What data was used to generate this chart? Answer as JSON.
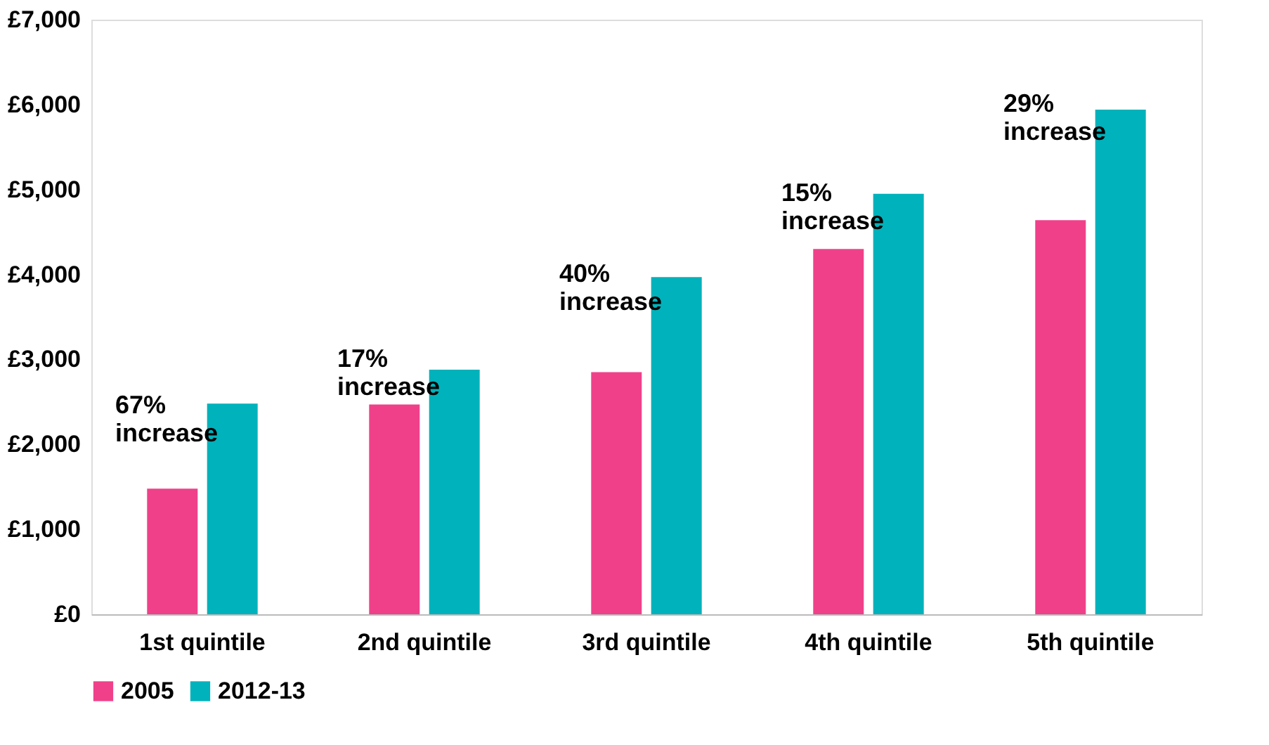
{
  "chart_data": {
    "type": "bar",
    "categories": [
      "1st quintile",
      "2nd quintile",
      "3rd quintile",
      "4th quintile",
      "5th quintile"
    ],
    "series": [
      {
        "name": "2005",
        "color": "#f0408a",
        "values": [
          1480,
          2470,
          2850,
          4300,
          4640
        ]
      },
      {
        "name": "2012-13",
        "color": "#00b2bb",
        "values": [
          2480,
          2880,
          3970,
          4950,
          5940
        ]
      }
    ],
    "ylim": [
      0,
      7000
    ],
    "yticks": [
      {
        "value": 0,
        "label": "£0"
      },
      {
        "value": 1000,
        "label": "£1,000"
      },
      {
        "value": 2000,
        "label": "£2,000"
      },
      {
        "value": 3000,
        "label": "£3,000"
      },
      {
        "value": 4000,
        "label": "£4,000"
      },
      {
        "value": 5000,
        "label": "£5,000"
      },
      {
        "value": 6000,
        "label": "£6,000"
      },
      {
        "value": 7000,
        "label": "£7,000"
      }
    ],
    "annotations": [
      {
        "text": "67% increase",
        "x": "1st quintile",
        "y": 2300
      },
      {
        "text": "17% increase",
        "x": "2nd quintile",
        "y": 2850
      },
      {
        "text": "40% increase",
        "x": "3rd quintile",
        "y": 3850
      },
      {
        "text": "15% increase",
        "x": "4th quintile",
        "y": 4800
      },
      {
        "text": "29% increase",
        "x": "5th quintile",
        "y": 5850
      }
    ],
    "grid": false,
    "legend": "bottom"
  }
}
